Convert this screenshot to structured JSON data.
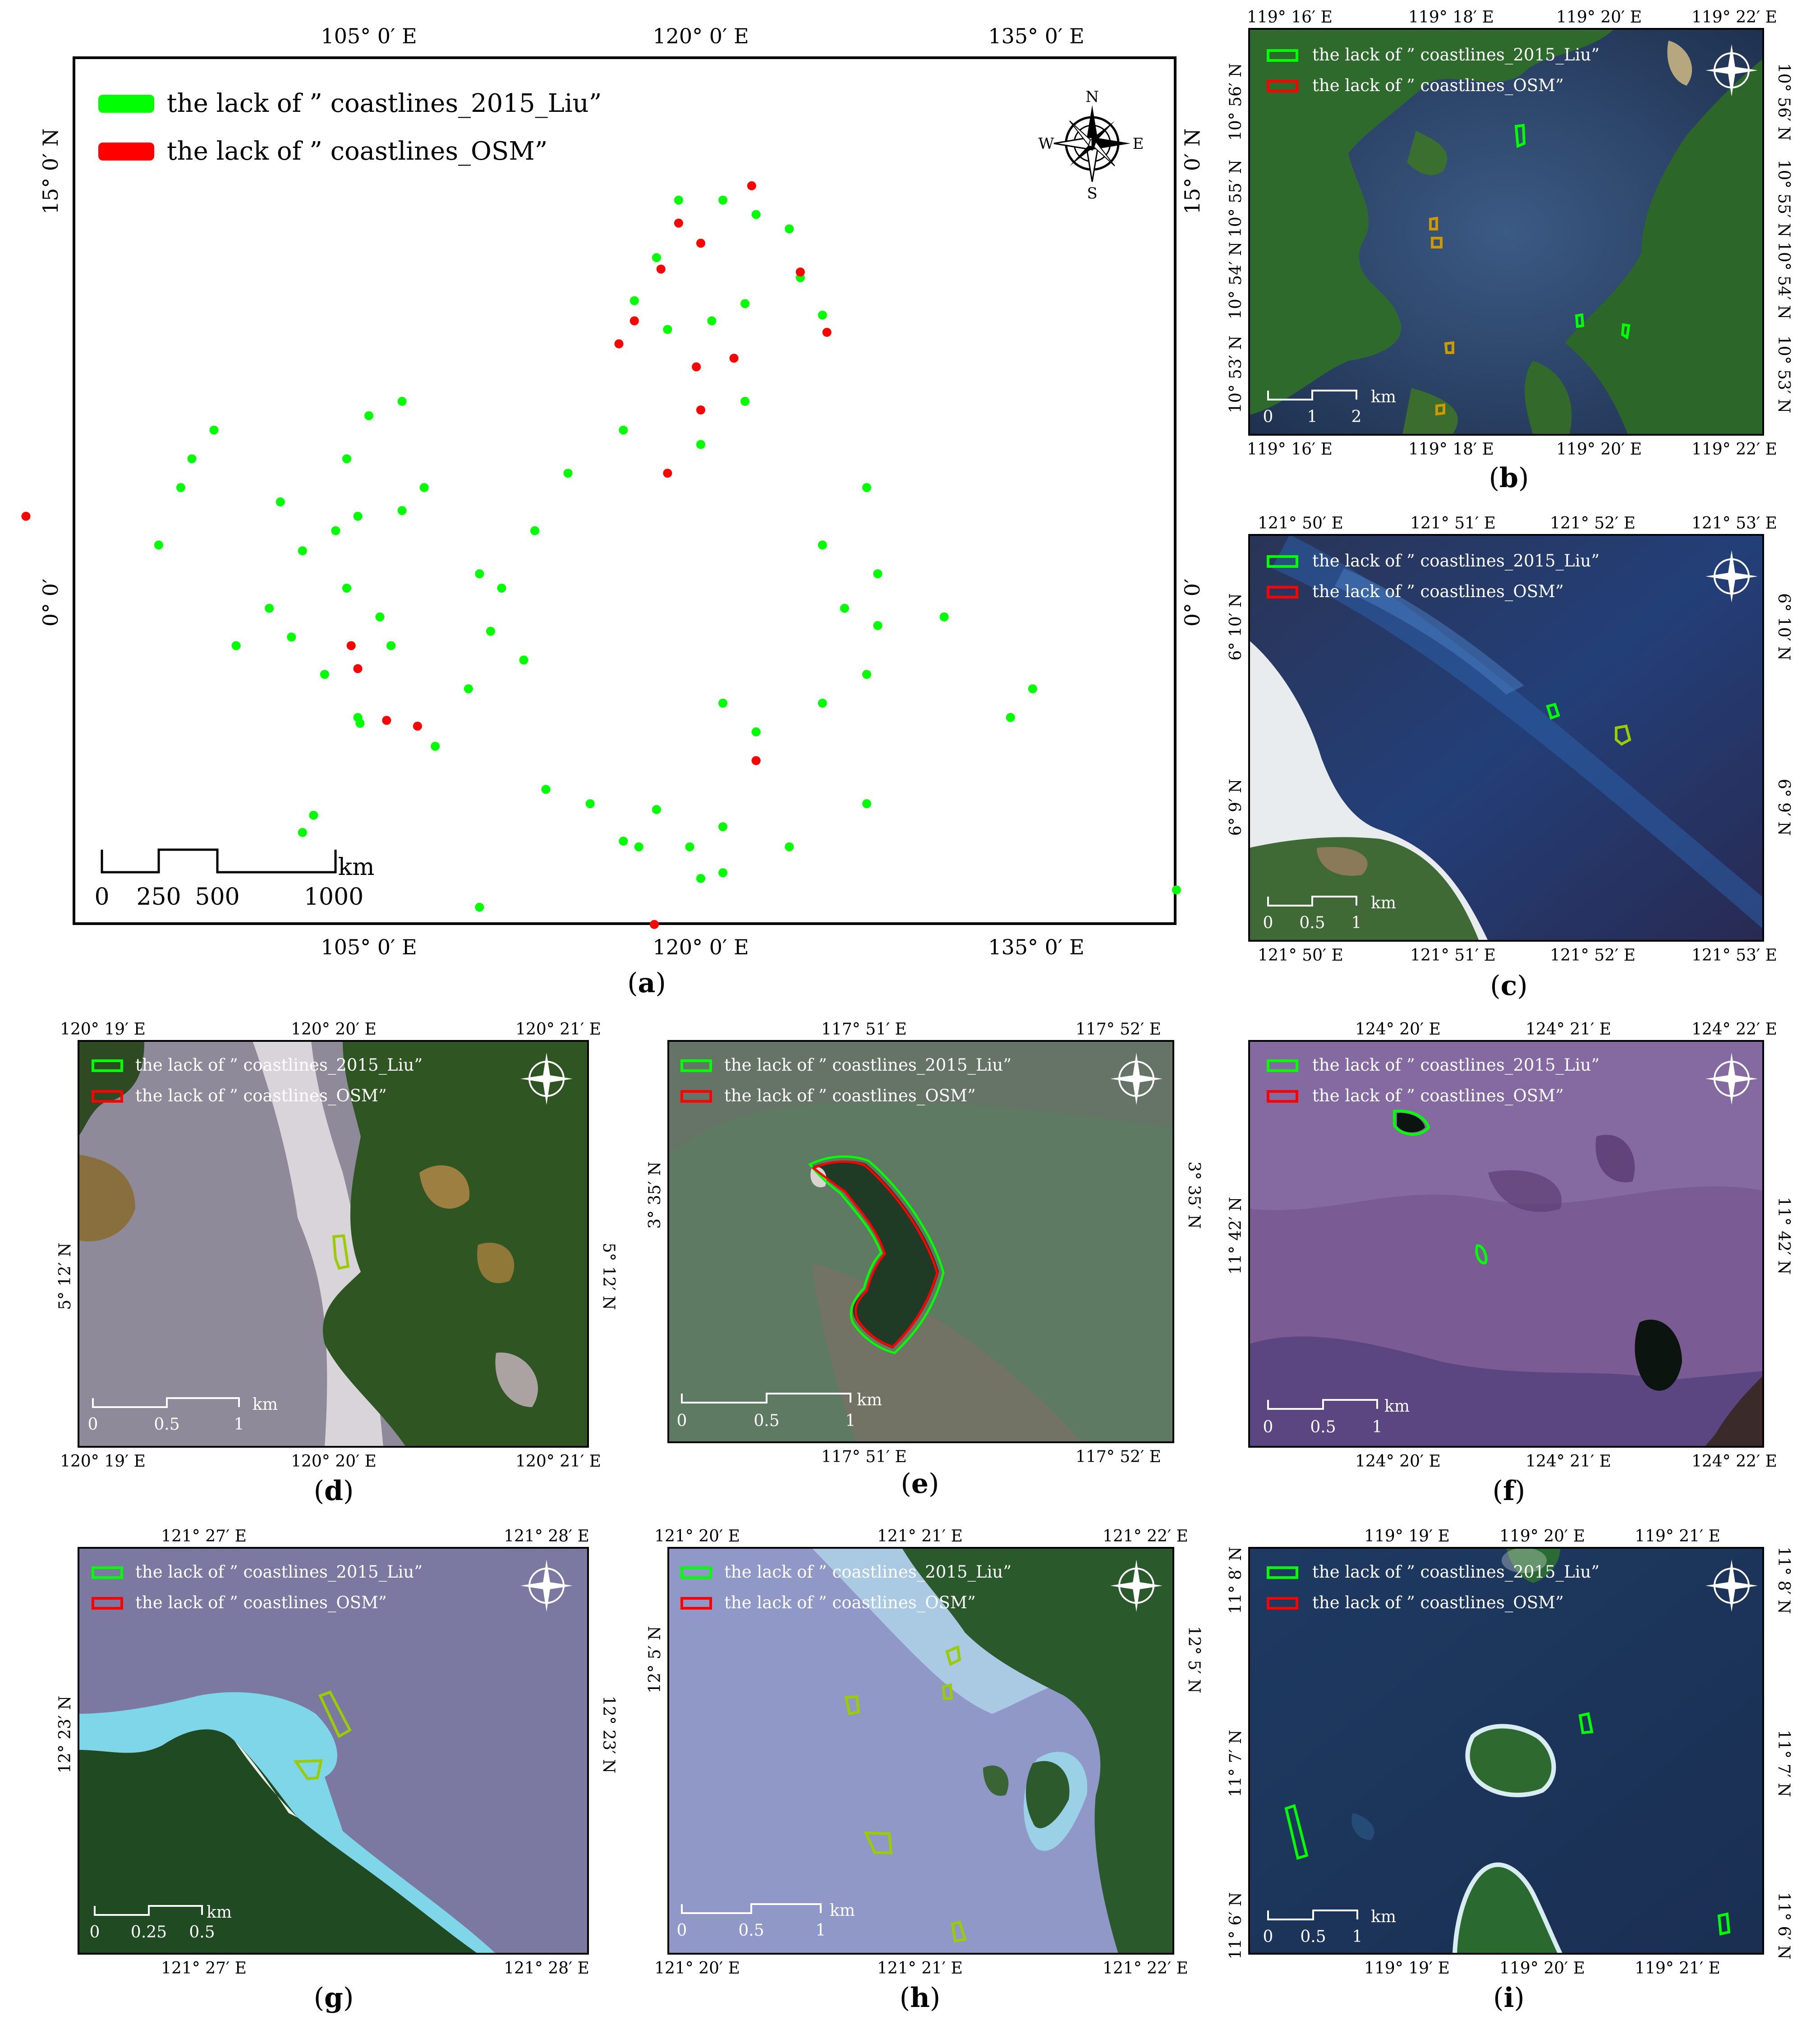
{
  "legend": {
    "liu": "the lack of ” coastlines_2015_Liu”",
    "osm": "the lack of ” coastlines_OSM”",
    "liu_color": "#00ff00",
    "osm_color": "#ff0000"
  },
  "compass": {
    "n": "N",
    "s": "S",
    "e": "E",
    "w": "W"
  },
  "panel_a": {
    "caption": "a",
    "lon_labels": [
      "105° 0′ E",
      "120° 0′ E",
      "135° 0′ E"
    ],
    "lat_labels": [
      "15° 0′ N",
      "0° 0′"
    ],
    "scale_ticks": [
      "0",
      "250",
      "500",
      "1000"
    ],
    "scale_unit": "km",
    "green_points": [
      [
        119,
        14
      ],
      [
        121,
        14
      ],
      [
        122.5,
        13.5
      ],
      [
        124,
        13
      ],
      [
        118,
        12
      ],
      [
        117,
        10.5
      ],
      [
        118.5,
        9.5
      ],
      [
        120.5,
        9.8
      ],
      [
        122,
        10.4
      ],
      [
        124.5,
        11.3
      ],
      [
        125.5,
        10
      ],
      [
        122,
        7
      ],
      [
        120,
        5.5
      ],
      [
        116.5,
        6
      ],
      [
        114,
        4.5
      ],
      [
        112.5,
        2.5
      ],
      [
        110,
        1
      ],
      [
        111,
        0.5
      ],
      [
        110.5,
        -1
      ],
      [
        112,
        -2
      ],
      [
        109.5,
        -3
      ],
      [
        106,
        -1.5
      ],
      [
        105.5,
        -0.5
      ],
      [
        104,
        0.5
      ],
      [
        103.5,
        2.5
      ],
      [
        104.5,
        3
      ],
      [
        106.5,
        3.2
      ],
      [
        107.5,
        4
      ],
      [
        104,
        5
      ],
      [
        105,
        6.5
      ],
      [
        106.5,
        7
      ],
      [
        102,
        1.8
      ],
      [
        101,
        3.5
      ],
      [
        98,
        6
      ],
      [
        97,
        5
      ],
      [
        96.5,
        4
      ],
      [
        95.5,
        2
      ],
      [
        99,
        -1.5
      ],
      [
        100.5,
        -0.2
      ],
      [
        101.5,
        -1.2
      ],
      [
        103,
        -2.5
      ],
      [
        104.5,
        -4
      ],
      [
        108,
        -5
      ],
      [
        113,
        -6.5
      ],
      [
        115,
        -7
      ],
      [
        118,
        -7.2
      ],
      [
        116.5,
        -8.3
      ],
      [
        119.5,
        -8.5
      ],
      [
        121,
        -7.8
      ],
      [
        124,
        -8.5
      ],
      [
        122.5,
        -4.5
      ],
      [
        121,
        -3.5
      ],
      [
        125.5,
        -3.5
      ],
      [
        127.5,
        -2.5
      ],
      [
        128,
        -0.8
      ],
      [
        126.5,
        -0.2
      ],
      [
        125.5,
        2
      ],
      [
        127.5,
        4
      ],
      [
        128,
        1
      ],
      [
        131,
        -0.5
      ],
      [
        134,
        -4
      ],
      [
        135,
        -3
      ],
      [
        141.5,
        -10
      ],
      [
        127.5,
        -7
      ],
      [
        120,
        -9.6
      ],
      [
        121,
        -9.4
      ],
      [
        117.2,
        -8.5
      ],
      [
        110,
        -10.6
      ],
      [
        102.5,
        -7.4
      ],
      [
        102,
        -8
      ],
      [
        104.6,
        -4.2
      ]
    ],
    "red_points": [
      [
        122.3,
        14.5
      ],
      [
        119,
        13.2
      ],
      [
        120,
        12.5
      ],
      [
        118.2,
        11.6
      ],
      [
        117,
        9.8
      ],
      [
        116.3,
        9
      ],
      [
        119.8,
        8.2
      ],
      [
        121.5,
        8.5
      ],
      [
        124.5,
        11.5
      ],
      [
        125.7,
        9.4
      ],
      [
        118.5,
        4.5
      ],
      [
        120,
        6.7
      ],
      [
        89.5,
        3
      ],
      [
        104.2,
        -1.5
      ],
      [
        104.5,
        -2.3
      ],
      [
        105.8,
        -4.1
      ],
      [
        107.2,
        -4.3
      ],
      [
        122.5,
        -5.5
      ],
      [
        117.9,
        -11.2
      ]
    ]
  },
  "panel_b": {
    "caption": "b",
    "top_labels": [
      "119° 16′ E",
      "119° 18′ E",
      "119° 20′ E",
      "119° 22′ E"
    ],
    "left_labels": [
      "10° 56′ N",
      "10° 55′ N",
      "10° 54′ N",
      "10° 53′ N"
    ],
    "scale_ticks": [
      "0",
      "1",
      "2"
    ],
    "scale_unit": "km"
  },
  "panel_c": {
    "caption": "c",
    "top_labels": [
      "121° 50′ E",
      "121° 51′ E",
      "121° 52′ E",
      "121° 53′ E"
    ],
    "left_labels": [
      "6° 10′ N",
      "6° 9′ N"
    ],
    "scale_ticks": [
      "0",
      "0.5",
      "1"
    ],
    "scale_unit": "km"
  },
  "panel_d": {
    "caption": "d",
    "top_labels": [
      "120° 19′ E",
      "120° 20′ E",
      "120° 21′ E"
    ],
    "left_labels": [
      "5° 12′ N"
    ],
    "scale_ticks": [
      "0",
      "0.5",
      "1"
    ],
    "scale_unit": "km"
  },
  "panel_e": {
    "caption": "e",
    "top_labels": [
      "117° 51′ E",
      "117° 52′ E"
    ],
    "left_labels": [
      "3° 35′ N"
    ],
    "scale_ticks": [
      "0",
      "0.5",
      "1"
    ],
    "scale_unit": "km"
  },
  "panel_f": {
    "caption": "f",
    "top_labels": [
      "124° 20′ E",
      "124° 21′ E",
      "124° 22′ E"
    ],
    "left_labels": [
      "11° 42′ N"
    ],
    "scale_ticks": [
      "0",
      "0.5",
      "1"
    ],
    "scale_unit": "km"
  },
  "panel_g": {
    "caption": "g",
    "top_labels": [
      "121° 27′ E",
      "121° 28′ E"
    ],
    "left_labels": [
      "12° 23′ N"
    ],
    "scale_ticks": [
      "0",
      "0.25",
      "0.5"
    ],
    "scale_unit": "km"
  },
  "panel_h": {
    "caption": "h",
    "top_labels": [
      "121° 20′ E",
      "121° 21′ E",
      "121° 22′ E"
    ],
    "left_labels": [
      "12° 5′ N"
    ],
    "scale_ticks": [
      "0",
      "0.5",
      "1"
    ],
    "scale_unit": "km"
  },
  "panel_i": {
    "caption": "i",
    "top_labels": [
      "119° 19′ E",
      "119° 20′ E",
      "119° 21′ E"
    ],
    "left_labels": [
      "11° 8′ N",
      "11° 7′ N",
      "11° 6′ N"
    ],
    "scale_ticks": [
      "0",
      "0.5",
      "1"
    ],
    "scale_unit": "km"
  }
}
